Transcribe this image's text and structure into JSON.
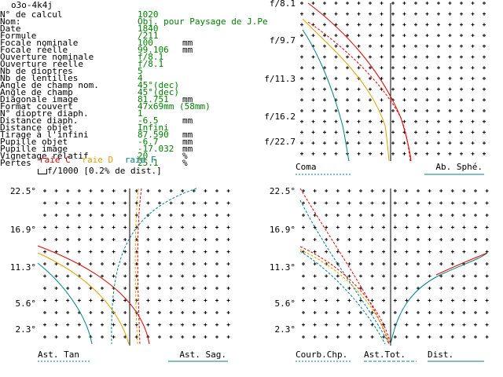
{
  "header": {
    "title": "o3o-4k4j"
  },
  "params": [
    {
      "label": "N° de calcul",
      "value": "1020",
      "unit": ""
    },
    {
      "label": "Nom:",
      "value": "Obj. pour Paysage de J.Pe",
      "unit": ""
    },
    {
      "label": "Date",
      "value": "1840",
      "unit": ""
    },
    {
      "label": "Formule",
      "value": "/211",
      "unit": ""
    },
    {
      "label": "Focale nominale",
      "value": "100",
      "unit": "mm"
    },
    {
      "label": "Focale réelle",
      "value": "99.106",
      "unit": "mm"
    },
    {
      "label": "Ouverture nominale",
      "value": "f/8.1",
      "unit": ""
    },
    {
      "label": "Ouverture réelle",
      "value": "f/8.1",
      "unit": ""
    },
    {
      "label": "Nb de dioptres",
      "value": "5",
      "unit": ""
    },
    {
      "label": "Nb de lentilles",
      "value": "4",
      "unit": ""
    },
    {
      "label": "Angle de champ nom.",
      "value": "45°(dec)",
      "unit": ""
    },
    {
      "label": "Angle de champ",
      "value": "45°(dec)",
      "unit": ""
    },
    {
      "label": "Diagonale image",
      "value": "81.751",
      "unit": "mm"
    },
    {
      "label": "Format couvert",
      "value": "47x69mm (58mm)",
      "unit": ""
    },
    {
      "label": "N° dioptre diaph.",
      "value": "1",
      "unit": ""
    },
    {
      "label": "Distance diaph.",
      "value": "-6.5",
      "unit": "mm"
    },
    {
      "label": "Distance objet",
      "value": "Infini",
      "unit": ""
    },
    {
      "label": "Tirage à l'infini",
      "value": "87.590",
      "unit": "mm"
    },
    {
      "label": "Pupille objet",
      "value": "-6.7",
      "unit": "mm"
    },
    {
      "label": "Pupille image",
      "value": "-17.032",
      "unit": "mm"
    },
    {
      "label": "Vignetage relatif",
      "value": "20",
      "unit": "%"
    },
    {
      "label": "Pertes",
      "value": "25.1",
      "unit": "%"
    }
  ],
  "raies": {
    "c": "raie C",
    "d": "raie D",
    "f": "raie F"
  },
  "dist_note": "f/1000 [0.2% de dist.]",
  "colors": {
    "c": "#e00000",
    "d": "#e0a000",
    "f": "#008080",
    "axis": "#000000",
    "value": "#008000"
  },
  "chart_data": [
    {
      "type": "line",
      "name": "coma-abspheric",
      "y_ticks": [
        "f/8.1",
        "f/9.7",
        "f/11.3",
        "f/16.2",
        "f/22.7"
      ],
      "labels": {
        "left": "Coma",
        "right": "Ab. Sphé."
      },
      "series": [
        {
          "name": "raie C",
          "style": "solid",
          "color": "#e00000"
        },
        {
          "name": "raie D",
          "style": "solid",
          "color": "#e0a000"
        },
        {
          "name": "raie F",
          "style": "solid",
          "color": "#008080"
        }
      ]
    },
    {
      "type": "line",
      "name": "astigmatism",
      "y_ticks": [
        "22.5°",
        "16.9°",
        "11.3°",
        "5.6°",
        "2.3°"
      ],
      "labels": {
        "left": "Ast. Tan",
        "right": "Ast. Sag."
      }
    },
    {
      "type": "line",
      "name": "curvature-distortion",
      "y_ticks": [
        "22.5°",
        "16.9°",
        "11.3°",
        "5.6°",
        "2.3°"
      ],
      "labels": {
        "left": "Courb.Chp.",
        "mid": "Ast.Tot.",
        "right": "Dist."
      }
    }
  ]
}
